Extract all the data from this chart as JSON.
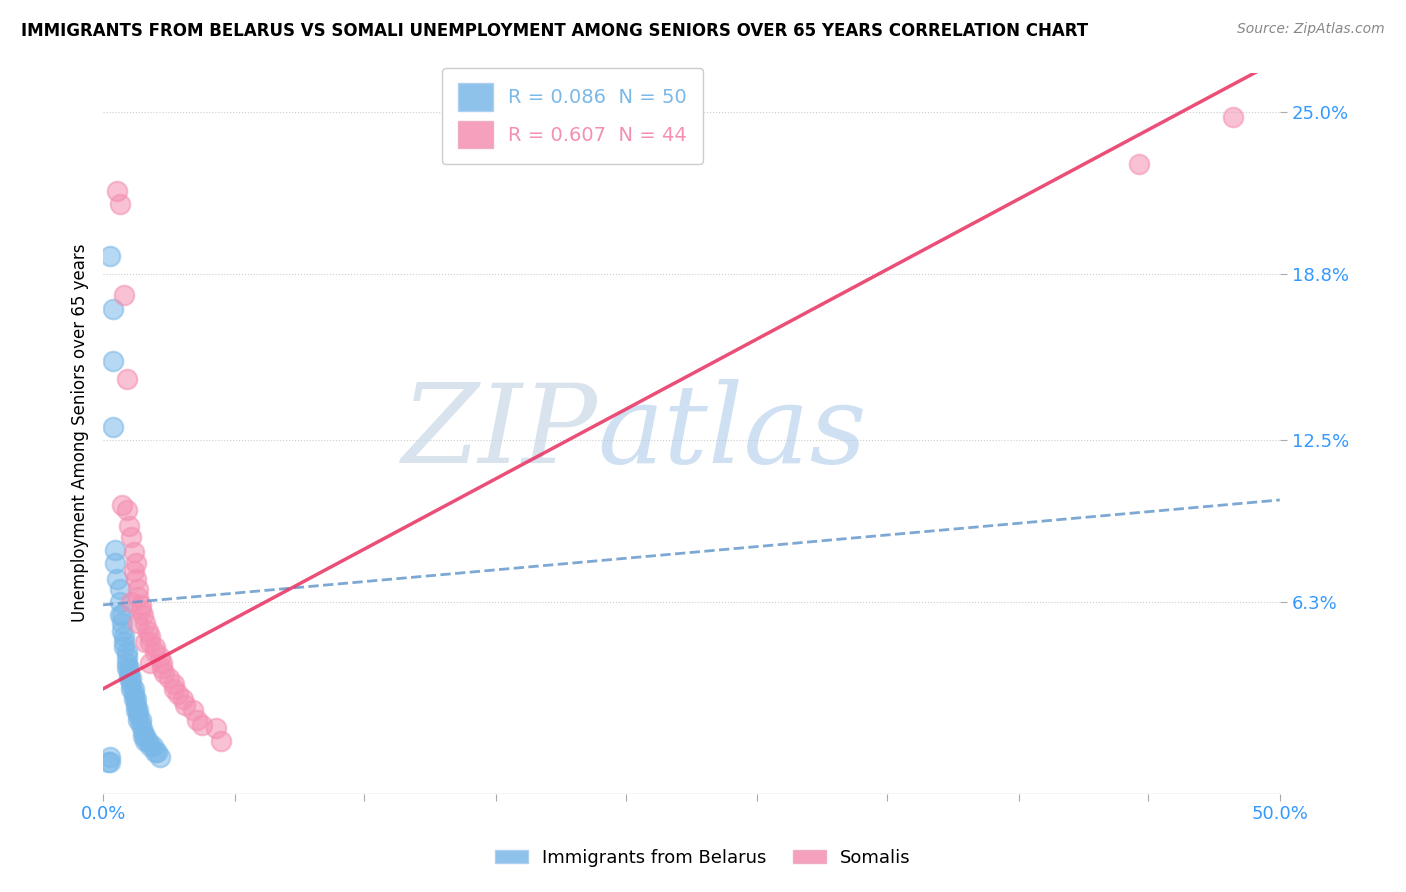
{
  "title": "IMMIGRANTS FROM BELARUS VS SOMALI UNEMPLOYMENT AMONG SENIORS OVER 65 YEARS CORRELATION CHART",
  "source": "Source: ZipAtlas.com",
  "ylabel": "Unemployment Among Seniors over 65 years",
  "y_tick_labels": [
    "6.3%",
    "12.5%",
    "18.8%",
    "25.0%"
  ],
  "y_tick_values": [
    0.063,
    0.125,
    0.188,
    0.25
  ],
  "x_tick_labels": [
    "0.0%",
    "",
    "",
    "",
    "",
    "",
    "",
    "",
    "",
    "50.0%"
  ],
  "x_tick_values": [
    0.0,
    0.056,
    0.111,
    0.167,
    0.222,
    0.278,
    0.333,
    0.389,
    0.444,
    0.5
  ],
  "xlim": [
    0.0,
    0.5
  ],
  "ylim": [
    -0.01,
    0.265
  ],
  "legend_entries": [
    {
      "label": "R = 0.086  N = 50",
      "color": "#7ab8e8"
    },
    {
      "label": "R = 0.607  N = 44",
      "color": "#f48fb1"
    }
  ],
  "bottom_legend": [
    "Immigrants from Belarus",
    "Somalis"
  ],
  "belarus_color": "#7ab8e8",
  "somali_color": "#f48fb1",
  "watermark_zip": "ZIP",
  "watermark_atlas": "atlas",
  "belarus_points": [
    [
      0.003,
      0.195
    ],
    [
      0.004,
      0.175
    ],
    [
      0.004,
      0.155
    ],
    [
      0.004,
      0.13
    ],
    [
      0.005,
      0.083
    ],
    [
      0.005,
      0.078
    ],
    [
      0.006,
      0.072
    ],
    [
      0.007,
      0.068
    ],
    [
      0.007,
      0.063
    ],
    [
      0.007,
      0.058
    ],
    [
      0.008,
      0.058
    ],
    [
      0.008,
      0.055
    ],
    [
      0.008,
      0.052
    ],
    [
      0.009,
      0.05
    ],
    [
      0.009,
      0.048
    ],
    [
      0.009,
      0.046
    ],
    [
      0.01,
      0.044
    ],
    [
      0.01,
      0.042
    ],
    [
      0.01,
      0.04
    ],
    [
      0.01,
      0.038
    ],
    [
      0.011,
      0.038
    ],
    [
      0.011,
      0.036
    ],
    [
      0.011,
      0.034
    ],
    [
      0.012,
      0.034
    ],
    [
      0.012,
      0.032
    ],
    [
      0.012,
      0.03
    ],
    [
      0.013,
      0.03
    ],
    [
      0.013,
      0.028
    ],
    [
      0.013,
      0.026
    ],
    [
      0.014,
      0.026
    ],
    [
      0.014,
      0.024
    ],
    [
      0.014,
      0.022
    ],
    [
      0.015,
      0.022
    ],
    [
      0.015,
      0.02
    ],
    [
      0.015,
      0.018
    ],
    [
      0.016,
      0.018
    ],
    [
      0.016,
      0.016
    ],
    [
      0.017,
      0.014
    ],
    [
      0.017,
      0.012
    ],
    [
      0.018,
      0.012
    ],
    [
      0.018,
      0.01
    ],
    [
      0.019,
      0.01
    ],
    [
      0.02,
      0.008
    ],
    [
      0.021,
      0.008
    ],
    [
      0.022,
      0.006
    ],
    [
      0.023,
      0.006
    ],
    [
      0.024,
      0.004
    ],
    [
      0.003,
      0.004
    ],
    [
      0.003,
      0.002
    ],
    [
      0.002,
      0.002
    ]
  ],
  "somali_points": [
    [
      0.006,
      0.22
    ],
    [
      0.007,
      0.215
    ],
    [
      0.009,
      0.18
    ],
    [
      0.01,
      0.148
    ],
    [
      0.008,
      0.1
    ],
    [
      0.01,
      0.098
    ],
    [
      0.011,
      0.092
    ],
    [
      0.012,
      0.088
    ],
    [
      0.013,
      0.082
    ],
    [
      0.014,
      0.078
    ],
    [
      0.013,
      0.075
    ],
    [
      0.014,
      0.072
    ],
    [
      0.015,
      0.068
    ],
    [
      0.015,
      0.065
    ],
    [
      0.016,
      0.062
    ],
    [
      0.016,
      0.06
    ],
    [
      0.017,
      0.058
    ],
    [
      0.018,
      0.055
    ],
    [
      0.019,
      0.052
    ],
    [
      0.02,
      0.05
    ],
    [
      0.02,
      0.048
    ],
    [
      0.022,
      0.046
    ],
    [
      0.022,
      0.044
    ],
    [
      0.024,
      0.042
    ],
    [
      0.025,
      0.04
    ],
    [
      0.025,
      0.038
    ],
    [
      0.026,
      0.036
    ],
    [
      0.028,
      0.034
    ],
    [
      0.03,
      0.032
    ],
    [
      0.03,
      0.03
    ],
    [
      0.032,
      0.028
    ],
    [
      0.034,
      0.026
    ],
    [
      0.035,
      0.024
    ],
    [
      0.038,
      0.022
    ],
    [
      0.04,
      0.018
    ],
    [
      0.042,
      0.016
    ],
    [
      0.012,
      0.063
    ],
    [
      0.015,
      0.055
    ],
    [
      0.018,
      0.048
    ],
    [
      0.02,
      0.04
    ],
    [
      0.48,
      0.248
    ],
    [
      0.44,
      0.23
    ],
    [
      0.048,
      0.015
    ],
    [
      0.05,
      0.01
    ]
  ],
  "belarus_trend": {
    "slope": 0.08,
    "intercept": 0.062
  },
  "somali_trend": {
    "slope": 0.48,
    "intercept": 0.03
  }
}
